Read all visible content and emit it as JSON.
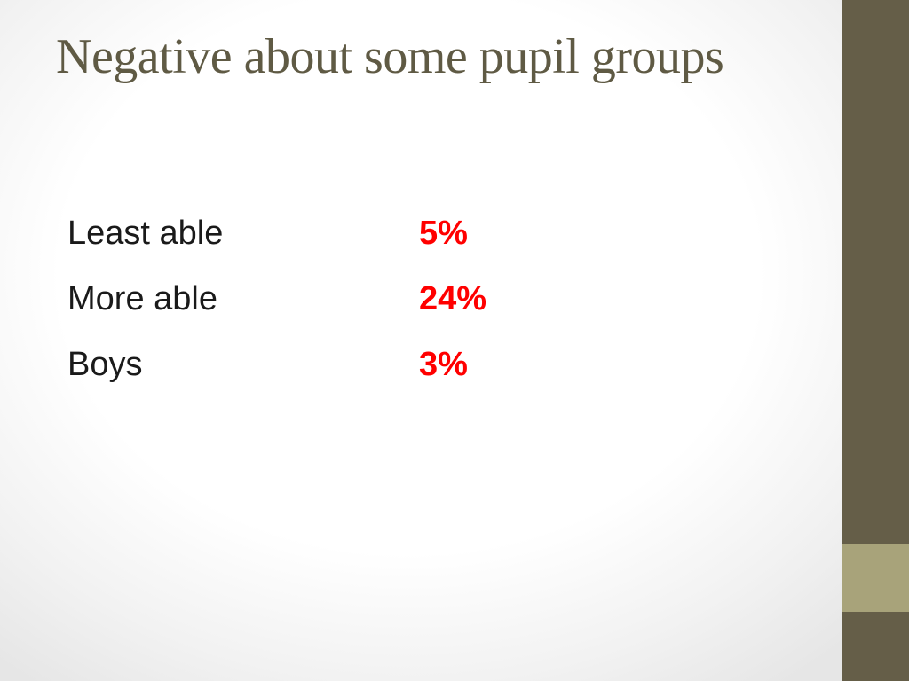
{
  "slide": {
    "title": "Negative about some pupil groups",
    "rows": [
      {
        "label": "Least able",
        "value": "5%"
      },
      {
        "label": "More able",
        "value": "24%"
      },
      {
        "label": "Boys",
        "value": "3%"
      }
    ]
  },
  "colors": {
    "title": "#5f5a44",
    "value": "#ff0000",
    "sidebar": "#655e48",
    "sidebar_accent": "#a8a37a"
  }
}
